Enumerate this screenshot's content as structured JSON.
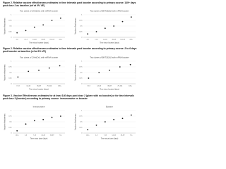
{
  "captions": [
    "Figure 2. Relative vaccine effectiveness estimates in time intervals past booster according to primary course: 140+ days post dose 2 as baseline (ref at 0% VE)",
    "Figure 2. Relative vaccine effectiveness estimates in time intervals past booster according to primary course: 2 to 6 days post booster as baseline (ref at 0% VE)",
    "Figure 3. Vaccine Effectiveness estimates for at least 140 days post dose 2 (given with no booster) or for time intervals post dose 3 (booster) according to primary course: immunonaive vs booster"
  ],
  "chart_data": [
    {
      "type": "scatter",
      "title": "Two doses of ChAdOx1 with mRNA booster",
      "xlabel": "Time since booster (days)",
      "ylabel": "Vaccine effectiveness",
      "categories": [
        "2-6",
        "7-13",
        "14-34",
        "35-69",
        "70-104",
        "105+"
      ],
      "values": [
        0.2,
        0.3,
        0.45,
        0.55,
        0.75,
        0.85
      ],
      "color": "#222222",
      "ylim": [
        0,
        1
      ],
      "yticks": [
        0,
        0.25,
        0.5,
        0.75,
        1
      ],
      "grid": true
    },
    {
      "type": "scatter",
      "title": "Two doses of BNT162b2 with mRNA booster",
      "xlabel": "Time since booster (days)",
      "ylabel": "Vaccine effectiveness",
      "categories": [
        "2-6",
        "7-13",
        "14-34",
        "35-69",
        "70-104",
        "105+"
      ],
      "values": [
        0.15,
        0.25,
        0.4,
        0.5,
        0.7,
        0.9
      ],
      "color": "#222222",
      "ylim": [
        0,
        1
      ],
      "yticks": [
        0,
        0.25,
        0.5,
        0.75,
        1
      ],
      "grid": true
    },
    {
      "type": "scatter",
      "title": "Two doses of ChAdOx1 with mRNA booster",
      "xlabel": "Time since booster (days)",
      "ylabel": "Vaccine effectiveness",
      "categories": [
        "7-13",
        "14-34",
        "35-69",
        "70-104",
        "105+"
      ],
      "values": [
        0.3,
        0.55,
        0.6,
        0.7,
        0.8
      ],
      "color": "#222222",
      "ylim": [
        0,
        1
      ],
      "yticks": [
        0,
        0.25,
        0.5,
        0.75,
        1
      ],
      "grid": true
    },
    {
      "type": "scatter",
      "title": "Two doses of BNT162b2 with mRNA booster",
      "xlabel": "Time since booster (days)",
      "ylabel": "Vaccine effectiveness",
      "categories": [
        "7-13",
        "14-34",
        "35-69",
        "70-104",
        "105+"
      ],
      "values": [
        0.25,
        0.5,
        0.6,
        0.75,
        0.85
      ],
      "color": "#222222",
      "ylim": [
        0,
        1
      ],
      "yticks": [
        0,
        0.25,
        0.5,
        0.75,
        1
      ],
      "grid": true
    },
    {
      "type": "scatter",
      "title": "Immunonaive",
      "xlabel": "Time since dose (days)",
      "ylabel": "Vaccine effectiveness",
      "categories": [
        "140+",
        "2-6",
        "7-13",
        "14-34",
        "35-69",
        "70+"
      ],
      "values": [
        0.1,
        0.4,
        0.55,
        0.6,
        0.7,
        0.75
      ],
      "color": "#222222",
      "ylim": [
        0,
        1
      ],
      "yticks": [
        0,
        0.25,
        0.5,
        0.75,
        1
      ],
      "grid": true
    },
    {
      "type": "scatter",
      "title": "Booster",
      "xlabel": "Time since dose (days)",
      "ylabel": "Vaccine effectiveness",
      "categories": [
        "140+",
        "2-6",
        "7-13",
        "14-34",
        "35-69",
        "70+"
      ],
      "values": [
        0.15,
        0.35,
        0.5,
        0.6,
        0.65,
        0.8
      ],
      "color": "#222222",
      "ylim": [
        0,
        1
      ],
      "yticks": [
        0,
        0.25,
        0.5,
        0.75,
        1
      ],
      "grid": true
    }
  ]
}
